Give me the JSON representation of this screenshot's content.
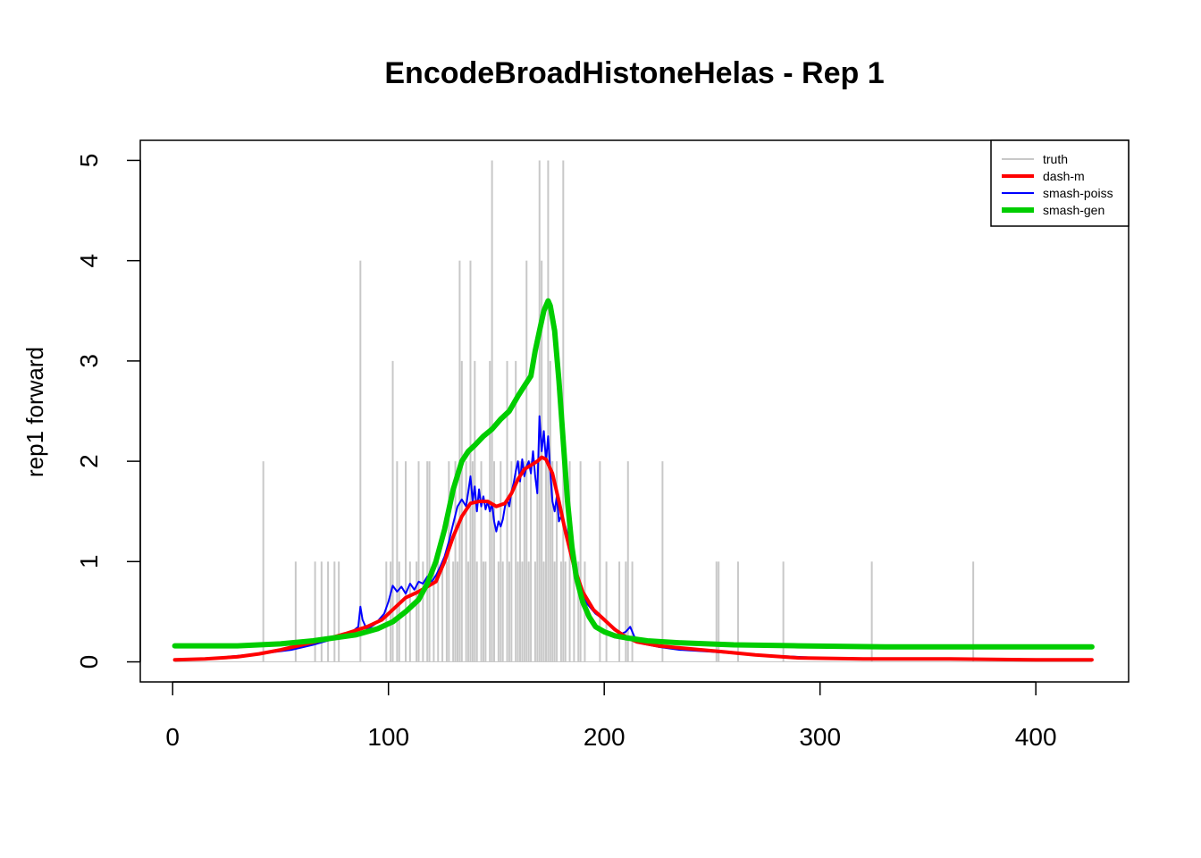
{
  "chart_data": {
    "type": "line",
    "title": "EncodeBroadHistoneHelas - Rep 1",
    "xlabel": "",
    "ylabel": "rep1 forward",
    "xlim": [
      -15,
      443
    ],
    "ylim": [
      -0.2,
      5.2
    ],
    "x_ticks": [
      0,
      100,
      200,
      300,
      400
    ],
    "y_ticks": [
      0,
      1,
      2,
      3,
      4,
      5
    ],
    "grid": false,
    "legend_position": "top-right",
    "legend": [
      {
        "label": "truth",
        "color": "#c8c8c8"
      },
      {
        "label": "dash-m",
        "color": "#ff0000"
      },
      {
        "label": "smash-poiss",
        "color": "#0000ff"
      },
      {
        "label": "smash-gen",
        "color": "#00cd00"
      }
    ],
    "series": [
      {
        "name": "truth",
        "style": "spikes",
        "color": "#c8c8c8",
        "points": [
          [
            42,
            2
          ],
          [
            57,
            1
          ],
          [
            66,
            1
          ],
          [
            69,
            1
          ],
          [
            72,
            1
          ],
          [
            75,
            1
          ],
          [
            77,
            1
          ],
          [
            87,
            4
          ],
          [
            99,
            1
          ],
          [
            101,
            1
          ],
          [
            102,
            3
          ],
          [
            104,
            2
          ],
          [
            105,
            1
          ],
          [
            108,
            2
          ],
          [
            110,
            1
          ],
          [
            113,
            1
          ],
          [
            114,
            2
          ],
          [
            116,
            1
          ],
          [
            118,
            2
          ],
          [
            119,
            2
          ],
          [
            121,
            1
          ],
          [
            123,
            1
          ],
          [
            125,
            1
          ],
          [
            127,
            1
          ],
          [
            128,
            2
          ],
          [
            130,
            1
          ],
          [
            131,
            2
          ],
          [
            132,
            1
          ],
          [
            133,
            4
          ],
          [
            134,
            3
          ],
          [
            136,
            2
          ],
          [
            137,
            1
          ],
          [
            138,
            4
          ],
          [
            139,
            2
          ],
          [
            140,
            3
          ],
          [
            141,
            1
          ],
          [
            143,
            2
          ],
          [
            144,
            1
          ],
          [
            145,
            1
          ],
          [
            147,
            3
          ],
          [
            148,
            5
          ],
          [
            149,
            2
          ],
          [
            151,
            1
          ],
          [
            152,
            2
          ],
          [
            153,
            1
          ],
          [
            155,
            3
          ],
          [
            156,
            1
          ],
          [
            157,
            2
          ],
          [
            159,
            3
          ],
          [
            160,
            1
          ],
          [
            161,
            2
          ],
          [
            162,
            1
          ],
          [
            163,
            2
          ],
          [
            164,
            4
          ],
          [
            165,
            1
          ],
          [
            166,
            2
          ],
          [
            168,
            1
          ],
          [
            169,
            2
          ],
          [
            170,
            5
          ],
          [
            171,
            4
          ],
          [
            172,
            1
          ],
          [
            173,
            2
          ],
          [
            174,
            5
          ],
          [
            175,
            3
          ],
          [
            176,
            2
          ],
          [
            177,
            1
          ],
          [
            178,
            2
          ],
          [
            180,
            1
          ],
          [
            181,
            5
          ],
          [
            182,
            1
          ],
          [
            184,
            2
          ],
          [
            186,
            1
          ],
          [
            188,
            1
          ],
          [
            189,
            2
          ],
          [
            191,
            1
          ],
          [
            198,
            2
          ],
          [
            201,
            1
          ],
          [
            207,
            1
          ],
          [
            210,
            1
          ],
          [
            211,
            2
          ],
          [
            213,
            1
          ],
          [
            227,
            2
          ],
          [
            252,
            1
          ],
          [
            253,
            1
          ],
          [
            262,
            1
          ],
          [
            283,
            1
          ],
          [
            324,
            1
          ],
          [
            371,
            1
          ]
        ]
      },
      {
        "name": "dash-m",
        "color": "#ff0000",
        "width": 4,
        "points": [
          [
            1,
            0.02
          ],
          [
            15,
            0.03
          ],
          [
            30,
            0.05
          ],
          [
            40,
            0.08
          ],
          [
            50,
            0.12
          ],
          [
            60,
            0.17
          ],
          [
            70,
            0.22
          ],
          [
            80,
            0.28
          ],
          [
            90,
            0.35
          ],
          [
            97,
            0.42
          ],
          [
            102,
            0.52
          ],
          [
            108,
            0.64
          ],
          [
            114,
            0.7
          ],
          [
            118,
            0.75
          ],
          [
            122,
            0.8
          ],
          [
            126,
            1.0
          ],
          [
            130,
            1.25
          ],
          [
            134,
            1.45
          ],
          [
            138,
            1.58
          ],
          [
            142,
            1.6
          ],
          [
            146,
            1.6
          ],
          [
            150,
            1.55
          ],
          [
            154,
            1.58
          ],
          [
            157,
            1.68
          ],
          [
            160,
            1.82
          ],
          [
            163,
            1.92
          ],
          [
            166,
            1.96
          ],
          [
            169,
            2.0
          ],
          [
            171,
            2.04
          ],
          [
            173,
            2.02
          ],
          [
            176,
            1.88
          ],
          [
            179,
            1.6
          ],
          [
            182,
            1.3
          ],
          [
            186,
            0.95
          ],
          [
            190,
            0.7
          ],
          [
            195,
            0.52
          ],
          [
            200,
            0.42
          ],
          [
            205,
            0.32
          ],
          [
            210,
            0.25
          ],
          [
            215,
            0.2
          ],
          [
            225,
            0.16
          ],
          [
            240,
            0.13
          ],
          [
            255,
            0.1
          ],
          [
            270,
            0.07
          ],
          [
            290,
            0.04
          ],
          [
            320,
            0.03
          ],
          [
            360,
            0.03
          ],
          [
            400,
            0.02
          ],
          [
            426,
            0.02
          ]
        ]
      },
      {
        "name": "smash-poiss",
        "color": "#0000ff",
        "width": 2,
        "points": [
          [
            1,
            0.02
          ],
          [
            20,
            0.04
          ],
          [
            40,
            0.08
          ],
          [
            55,
            0.12
          ],
          [
            65,
            0.17
          ],
          [
            75,
            0.23
          ],
          [
            82,
            0.28
          ],
          [
            86,
            0.35
          ],
          [
            87,
            0.55
          ],
          [
            88,
            0.42
          ],
          [
            90,
            0.32
          ],
          [
            94,
            0.38
          ],
          [
            98,
            0.48
          ],
          [
            100,
            0.6
          ],
          [
            102,
            0.76
          ],
          [
            104,
            0.7
          ],
          [
            106,
            0.75
          ],
          [
            108,
            0.68
          ],
          [
            110,
            0.78
          ],
          [
            112,
            0.72
          ],
          [
            114,
            0.8
          ],
          [
            116,
            0.78
          ],
          [
            118,
            0.85
          ],
          [
            120,
            0.8
          ],
          [
            122,
            0.86
          ],
          [
            124,
            0.95
          ],
          [
            126,
            1.05
          ],
          [
            128,
            1.2
          ],
          [
            130,
            1.38
          ],
          [
            132,
            1.55
          ],
          [
            134,
            1.62
          ],
          [
            136,
            1.55
          ],
          [
            137,
            1.7
          ],
          [
            138,
            1.85
          ],
          [
            139,
            1.6
          ],
          [
            140,
            1.75
          ],
          [
            141,
            1.5
          ],
          [
            142,
            1.72
          ],
          [
            143,
            1.55
          ],
          [
            144,
            1.65
          ],
          [
            145,
            1.52
          ],
          [
            146,
            1.6
          ],
          [
            147,
            1.5
          ],
          [
            148,
            1.58
          ],
          [
            149,
            1.4
          ],
          [
            150,
            1.3
          ],
          [
            151,
            1.4
          ],
          [
            152,
            1.35
          ],
          [
            153,
            1.42
          ],
          [
            154,
            1.55
          ],
          [
            155,
            1.62
          ],
          [
            156,
            1.55
          ],
          [
            157,
            1.7
          ],
          [
            158,
            1.78
          ],
          [
            159,
            1.9
          ],
          [
            160,
            2.0
          ],
          [
            161,
            1.8
          ],
          [
            162,
            2.02
          ],
          [
            163,
            1.85
          ],
          [
            164,
            1.95
          ],
          [
            165,
            2.0
          ],
          [
            166,
            1.88
          ],
          [
            167,
            2.1
          ],
          [
            168,
            1.85
          ],
          [
            169,
            1.68
          ],
          [
            170,
            2.45
          ],
          [
            171,
            2.1
          ],
          [
            172,
            2.3
          ],
          [
            173,
            2.0
          ],
          [
            174,
            2.25
          ],
          [
            175,
            1.9
          ],
          [
            176,
            1.6
          ],
          [
            177,
            1.5
          ],
          [
            178,
            1.65
          ],
          [
            179,
            1.4
          ],
          [
            180,
            1.45
          ],
          [
            182,
            1.35
          ],
          [
            184,
            1.2
          ],
          [
            186,
            0.9
          ],
          [
            189,
            0.7
          ],
          [
            192,
            0.58
          ],
          [
            196,
            0.48
          ],
          [
            200,
            0.42
          ],
          [
            204,
            0.35
          ],
          [
            208,
            0.28
          ],
          [
            210,
            0.3
          ],
          [
            212,
            0.35
          ],
          [
            214,
            0.25
          ],
          [
            218,
            0.18
          ],
          [
            225,
            0.15
          ],
          [
            235,
            0.12
          ],
          [
            250,
            0.1
          ],
          [
            270,
            0.07
          ],
          [
            300,
            0.04
          ],
          [
            350,
            0.03
          ],
          [
            426,
            0.02
          ]
        ]
      },
      {
        "name": "smash-gen",
        "color": "#00cd00",
        "width": 6,
        "points": [
          [
            1,
            0.16
          ],
          [
            30,
            0.16
          ],
          [
            50,
            0.18
          ],
          [
            65,
            0.21
          ],
          [
            75,
            0.24
          ],
          [
            85,
            0.27
          ],
          [
            95,
            0.33
          ],
          [
            102,
            0.4
          ],
          [
            108,
            0.5
          ],
          [
            114,
            0.62
          ],
          [
            118,
            0.78
          ],
          [
            122,
            1.0
          ],
          [
            126,
            1.32
          ],
          [
            130,
            1.72
          ],
          [
            134,
            2.0
          ],
          [
            137,
            2.1
          ],
          [
            140,
            2.16
          ],
          [
            144,
            2.25
          ],
          [
            148,
            2.32
          ],
          [
            152,
            2.42
          ],
          [
            156,
            2.5
          ],
          [
            160,
            2.65
          ],
          [
            163,
            2.75
          ],
          [
            166,
            2.85
          ],
          [
            168,
            3.1
          ],
          [
            170,
            3.3
          ],
          [
            172,
            3.5
          ],
          [
            174,
            3.6
          ],
          [
            175,
            3.55
          ],
          [
            177,
            3.3
          ],
          [
            179,
            2.8
          ],
          [
            181,
            2.2
          ],
          [
            183,
            1.6
          ],
          [
            185,
            1.15
          ],
          [
            187,
            0.85
          ],
          [
            190,
            0.6
          ],
          [
            193,
            0.45
          ],
          [
            196,
            0.35
          ],
          [
            200,
            0.3
          ],
          [
            205,
            0.26
          ],
          [
            210,
            0.24
          ],
          [
            220,
            0.21
          ],
          [
            235,
            0.19
          ],
          [
            260,
            0.17
          ],
          [
            290,
            0.16
          ],
          [
            330,
            0.15
          ],
          [
            426,
            0.15
          ]
        ]
      }
    ]
  }
}
